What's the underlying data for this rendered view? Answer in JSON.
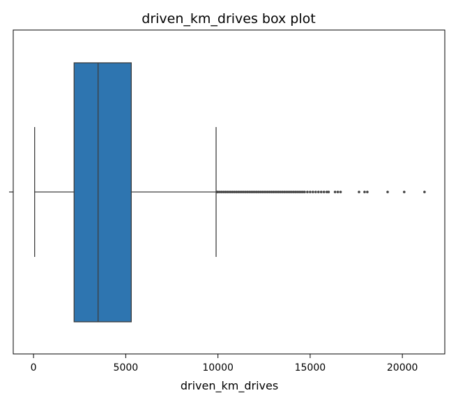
{
  "chart_data": {
    "type": "box",
    "title": "driven_km_drives box plot",
    "xlabel": "driven_km_drives",
    "ylabel": "",
    "orientation": "horizontal",
    "xlim": [
      -1100,
      22300
    ],
    "xticks": [
      0,
      5000,
      10000,
      15000,
      20000
    ],
    "xtick_labels": [
      "0",
      "5000",
      "10000",
      "15000",
      "20000"
    ],
    "grid": false,
    "legend": "none",
    "box": {
      "whisker_low": 60,
      "q1": 2200,
      "median": 3500,
      "q3": 5300,
      "whisker_high": 9900
    },
    "outliers": [
      9950,
      10000,
      10100,
      10200,
      10300,
      10400,
      10500,
      10600,
      10700,
      10800,
      10900,
      11000,
      11100,
      11200,
      11300,
      11400,
      11500,
      11600,
      11700,
      11800,
      11900,
      12000,
      12100,
      12200,
      12300,
      12400,
      12500,
      12600,
      12700,
      12800,
      12900,
      13000,
      13100,
      13200,
      13300,
      13400,
      13500,
      13600,
      13700,
      13800,
      13900,
      14000,
      14100,
      14200,
      14300,
      14400,
      14500,
      14600,
      14700,
      14850,
      15000,
      15150,
      15300,
      15450,
      15600,
      15750,
      15900,
      16000,
      16350,
      16500,
      16650,
      17650,
      17950,
      18100,
      19200,
      20100,
      21200
    ],
    "colors": {
      "box_fill": "#2e75b0",
      "box_edge": "#3d3d3d",
      "line": "#3d3d3d",
      "outlier": "#3d3d3d"
    }
  }
}
